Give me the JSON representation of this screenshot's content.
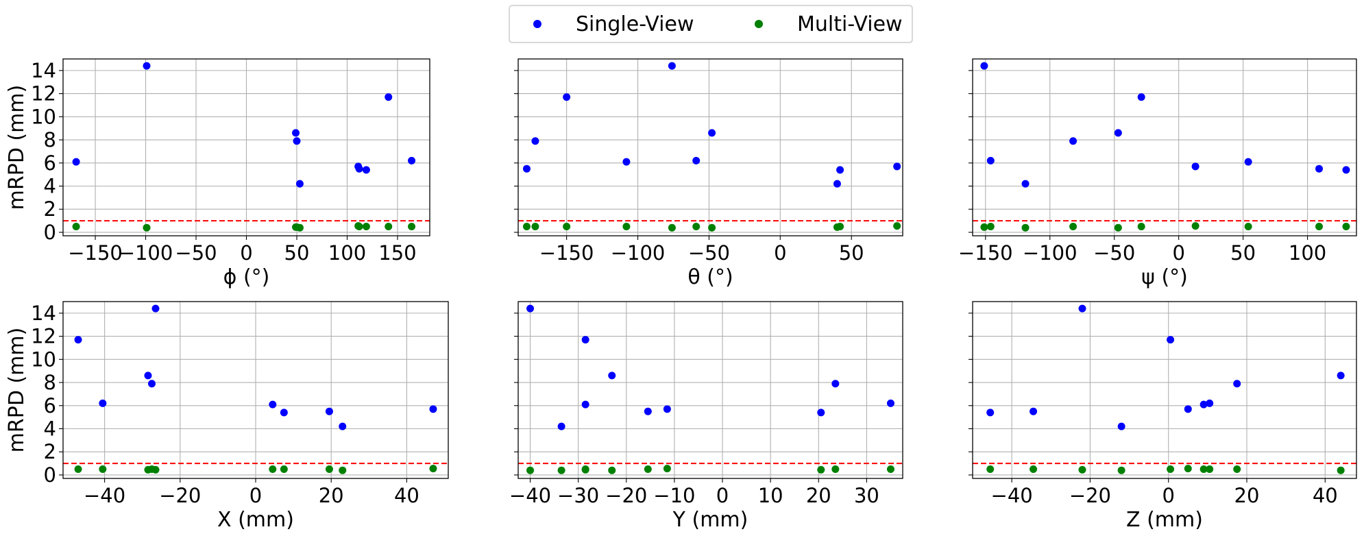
{
  "colors": {
    "single": "#0000ff",
    "multi": "#008000",
    "threshold": "#ff0000"
  },
  "legend": {
    "placement": "top-center",
    "entries": [
      {
        "label": "Single-View",
        "color": "#0000ff"
      },
      {
        "label": "Multi-View",
        "color": "#008000"
      }
    ]
  },
  "chart_data": [
    {
      "type": "scatter",
      "xlabel": "ϕ (°)",
      "ylabel": "mRPD (mm)",
      "xlim": [
        -182,
        182
      ],
      "ylim": [
        -0.3,
        15
      ],
      "xticks": [
        -150,
        -100,
        -50,
        0,
        50,
        100,
        150
      ],
      "yticks": [
        0,
        2,
        4,
        6,
        8,
        10,
        12,
        14
      ],
      "grid": true,
      "threshold": 1.0,
      "series": [
        {
          "name": "Single-View",
          "color": "#0000ff",
          "points": [
            [
              -169,
              6.1
            ],
            [
              -99,
              14.4
            ],
            [
              49,
              8.6
            ],
            [
              50,
              7.9
            ],
            [
              53,
              4.2
            ],
            [
              111,
              5.7
            ],
            [
              112,
              5.5
            ],
            [
              119,
              5.4
            ],
            [
              141,
              11.7
            ],
            [
              164,
              6.2
            ]
          ]
        },
        {
          "name": "Multi-View",
          "color": "#008000",
          "points": [
            [
              -169,
              0.5
            ],
            [
              -99,
              0.4
            ],
            [
              49,
              0.45
            ],
            [
              50,
              0.45
            ],
            [
              53,
              0.4
            ],
            [
              111,
              0.55
            ],
            [
              112,
              0.5
            ],
            [
              119,
              0.5
            ],
            [
              141,
              0.5
            ],
            [
              164,
              0.5
            ]
          ]
        }
      ]
    },
    {
      "type": "scatter",
      "xlabel": "θ (°)",
      "ylabel": "",
      "xlim": [
        -184,
        86
      ],
      "ylim": [
        -0.3,
        15
      ],
      "xticks": [
        -150,
        -100,
        -50,
        0,
        50
      ],
      "yticks": [
        0,
        2,
        4,
        6,
        8,
        10,
        12,
        14
      ],
      "grid": true,
      "threshold": 1.0,
      "series": [
        {
          "name": "Single-View",
          "color": "#0000ff",
          "points": [
            [
              -178,
              5.5
            ],
            [
              -172,
              7.9
            ],
            [
              -150,
              11.7
            ],
            [
              -108,
              6.1
            ],
            [
              -76,
              14.4
            ],
            [
              -59,
              6.2
            ],
            [
              -48,
              8.6
            ],
            [
              40,
              4.2
            ],
            [
              42,
              5.4
            ],
            [
              82,
              5.7
            ]
          ]
        },
        {
          "name": "Multi-View",
          "color": "#008000",
          "points": [
            [
              -178,
              0.5
            ],
            [
              -172,
              0.5
            ],
            [
              -150,
              0.5
            ],
            [
              -108,
              0.5
            ],
            [
              -76,
              0.4
            ],
            [
              -59,
              0.5
            ],
            [
              -48,
              0.4
            ],
            [
              40,
              0.45
            ],
            [
              42,
              0.5
            ],
            [
              82,
              0.55
            ]
          ]
        }
      ]
    },
    {
      "type": "scatter",
      "xlabel": "ψ (°)",
      "ylabel": "",
      "xlim": [
        -160,
        138
      ],
      "ylim": [
        -0.3,
        15
      ],
      "xticks": [
        -150,
        -100,
        -50,
        0,
        50,
        100
      ],
      "yticks": [
        0,
        2,
        4,
        6,
        8,
        10,
        12,
        14
      ],
      "grid": true,
      "threshold": 1.0,
      "series": [
        {
          "name": "Single-View",
          "color": "#0000ff",
          "points": [
            [
              -151,
              14.4
            ],
            [
              -146,
              6.2
            ],
            [
              -119,
              4.2
            ],
            [
              -82,
              7.9
            ],
            [
              -47,
              8.6
            ],
            [
              -29,
              11.7
            ],
            [
              13,
              5.7
            ],
            [
              54,
              6.1
            ],
            [
              109,
              5.5
            ],
            [
              130,
              5.4
            ]
          ]
        },
        {
          "name": "Multi-View",
          "color": "#008000",
          "points": [
            [
              -151,
              0.45
            ],
            [
              -146,
              0.5
            ],
            [
              -119,
              0.4
            ],
            [
              -82,
              0.5
            ],
            [
              -47,
              0.4
            ],
            [
              -29,
              0.5
            ],
            [
              13,
              0.55
            ],
            [
              54,
              0.5
            ],
            [
              109,
              0.5
            ],
            [
              130,
              0.5
            ]
          ]
        }
      ]
    },
    {
      "type": "scatter",
      "xlabel": "X (mm)",
      "ylabel": "mRPD (mm)",
      "xlim": [
        -51,
        51
      ],
      "ylim": [
        -0.3,
        15
      ],
      "xticks": [
        -40,
        -20,
        0,
        20,
        40
      ],
      "yticks": [
        0,
        2,
        4,
        6,
        8,
        10,
        12,
        14
      ],
      "grid": true,
      "threshold": 1.0,
      "series": [
        {
          "name": "Single-View",
          "color": "#0000ff",
          "points": [
            [
              -47,
              11.7
            ],
            [
              -40.5,
              6.2
            ],
            [
              -28.5,
              8.6
            ],
            [
              -27.5,
              7.9
            ],
            [
              -26.5,
              14.4
            ],
            [
              4.5,
              6.1
            ],
            [
              7.5,
              5.4
            ],
            [
              19.5,
              5.5
            ],
            [
              23,
              4.2
            ],
            [
              47,
              5.7
            ]
          ]
        },
        {
          "name": "Multi-View",
          "color": "#008000",
          "points": [
            [
              -47,
              0.5
            ],
            [
              -40.5,
              0.5
            ],
            [
              -28.5,
              0.45
            ],
            [
              -27.5,
              0.5
            ],
            [
              -26.5,
              0.45
            ],
            [
              4.5,
              0.5
            ],
            [
              7.5,
              0.5
            ],
            [
              19.5,
              0.5
            ],
            [
              23,
              0.4
            ],
            [
              47,
              0.55
            ]
          ]
        }
      ]
    },
    {
      "type": "scatter",
      "xlabel": "Y (mm)",
      "ylabel": "",
      "xlim": [
        -42.5,
        37.5
      ],
      "ylim": [
        -0.3,
        15
      ],
      "xticks": [
        -40,
        -30,
        -20,
        -10,
        0,
        10,
        20,
        30
      ],
      "yticks": [
        0,
        2,
        4,
        6,
        8,
        10,
        12,
        14
      ],
      "grid": true,
      "threshold": 1.0,
      "series": [
        {
          "name": "Single-View",
          "color": "#0000ff",
          "points": [
            [
              -40,
              14.4
            ],
            [
              -33.5,
              4.2
            ],
            [
              -28.5,
              11.7
            ],
            [
              -28.5,
              6.1
            ],
            [
              -23,
              8.6
            ],
            [
              -15.5,
              5.5
            ],
            [
              -11.5,
              5.7
            ],
            [
              20.5,
              5.4
            ],
            [
              23.5,
              7.9
            ],
            [
              35,
              6.2
            ]
          ]
        },
        {
          "name": "Multi-View",
          "color": "#008000",
          "points": [
            [
              -40,
              0.4
            ],
            [
              -33.5,
              0.4
            ],
            [
              -28.5,
              0.45
            ],
            [
              -28.5,
              0.5
            ],
            [
              -23,
              0.4
            ],
            [
              -15.5,
              0.5
            ],
            [
              -11.5,
              0.55
            ],
            [
              20.5,
              0.45
            ],
            [
              23.5,
              0.5
            ],
            [
              35,
              0.5
            ]
          ]
        }
      ]
    },
    {
      "type": "scatter",
      "xlabel": "Z (mm)",
      "ylabel": "",
      "xlim": [
        -50,
        48
      ],
      "ylim": [
        -0.3,
        15
      ],
      "xticks": [
        -40,
        -20,
        0,
        20,
        40
      ],
      "yticks": [
        0,
        2,
        4,
        6,
        8,
        10,
        12,
        14
      ],
      "grid": true,
      "threshold": 1.0,
      "series": [
        {
          "name": "Single-View",
          "color": "#0000ff",
          "points": [
            [
              -45.5,
              5.4
            ],
            [
              -34.5,
              5.5
            ],
            [
              -22,
              14.4
            ],
            [
              -12,
              4.2
            ],
            [
              0.5,
              11.7
            ],
            [
              5,
              5.7
            ],
            [
              9,
              6.1
            ],
            [
              10.5,
              6.2
            ],
            [
              17.5,
              7.9
            ],
            [
              44,
              8.6
            ]
          ]
        },
        {
          "name": "Multi-View",
          "color": "#008000",
          "points": [
            [
              -45.5,
              0.5
            ],
            [
              -34.5,
              0.5
            ],
            [
              -22,
              0.45
            ],
            [
              -12,
              0.4
            ],
            [
              0.5,
              0.5
            ],
            [
              5,
              0.55
            ],
            [
              9,
              0.5
            ],
            [
              10.5,
              0.5
            ],
            [
              17.5,
              0.5
            ],
            [
              44,
              0.4
            ]
          ]
        }
      ]
    }
  ]
}
